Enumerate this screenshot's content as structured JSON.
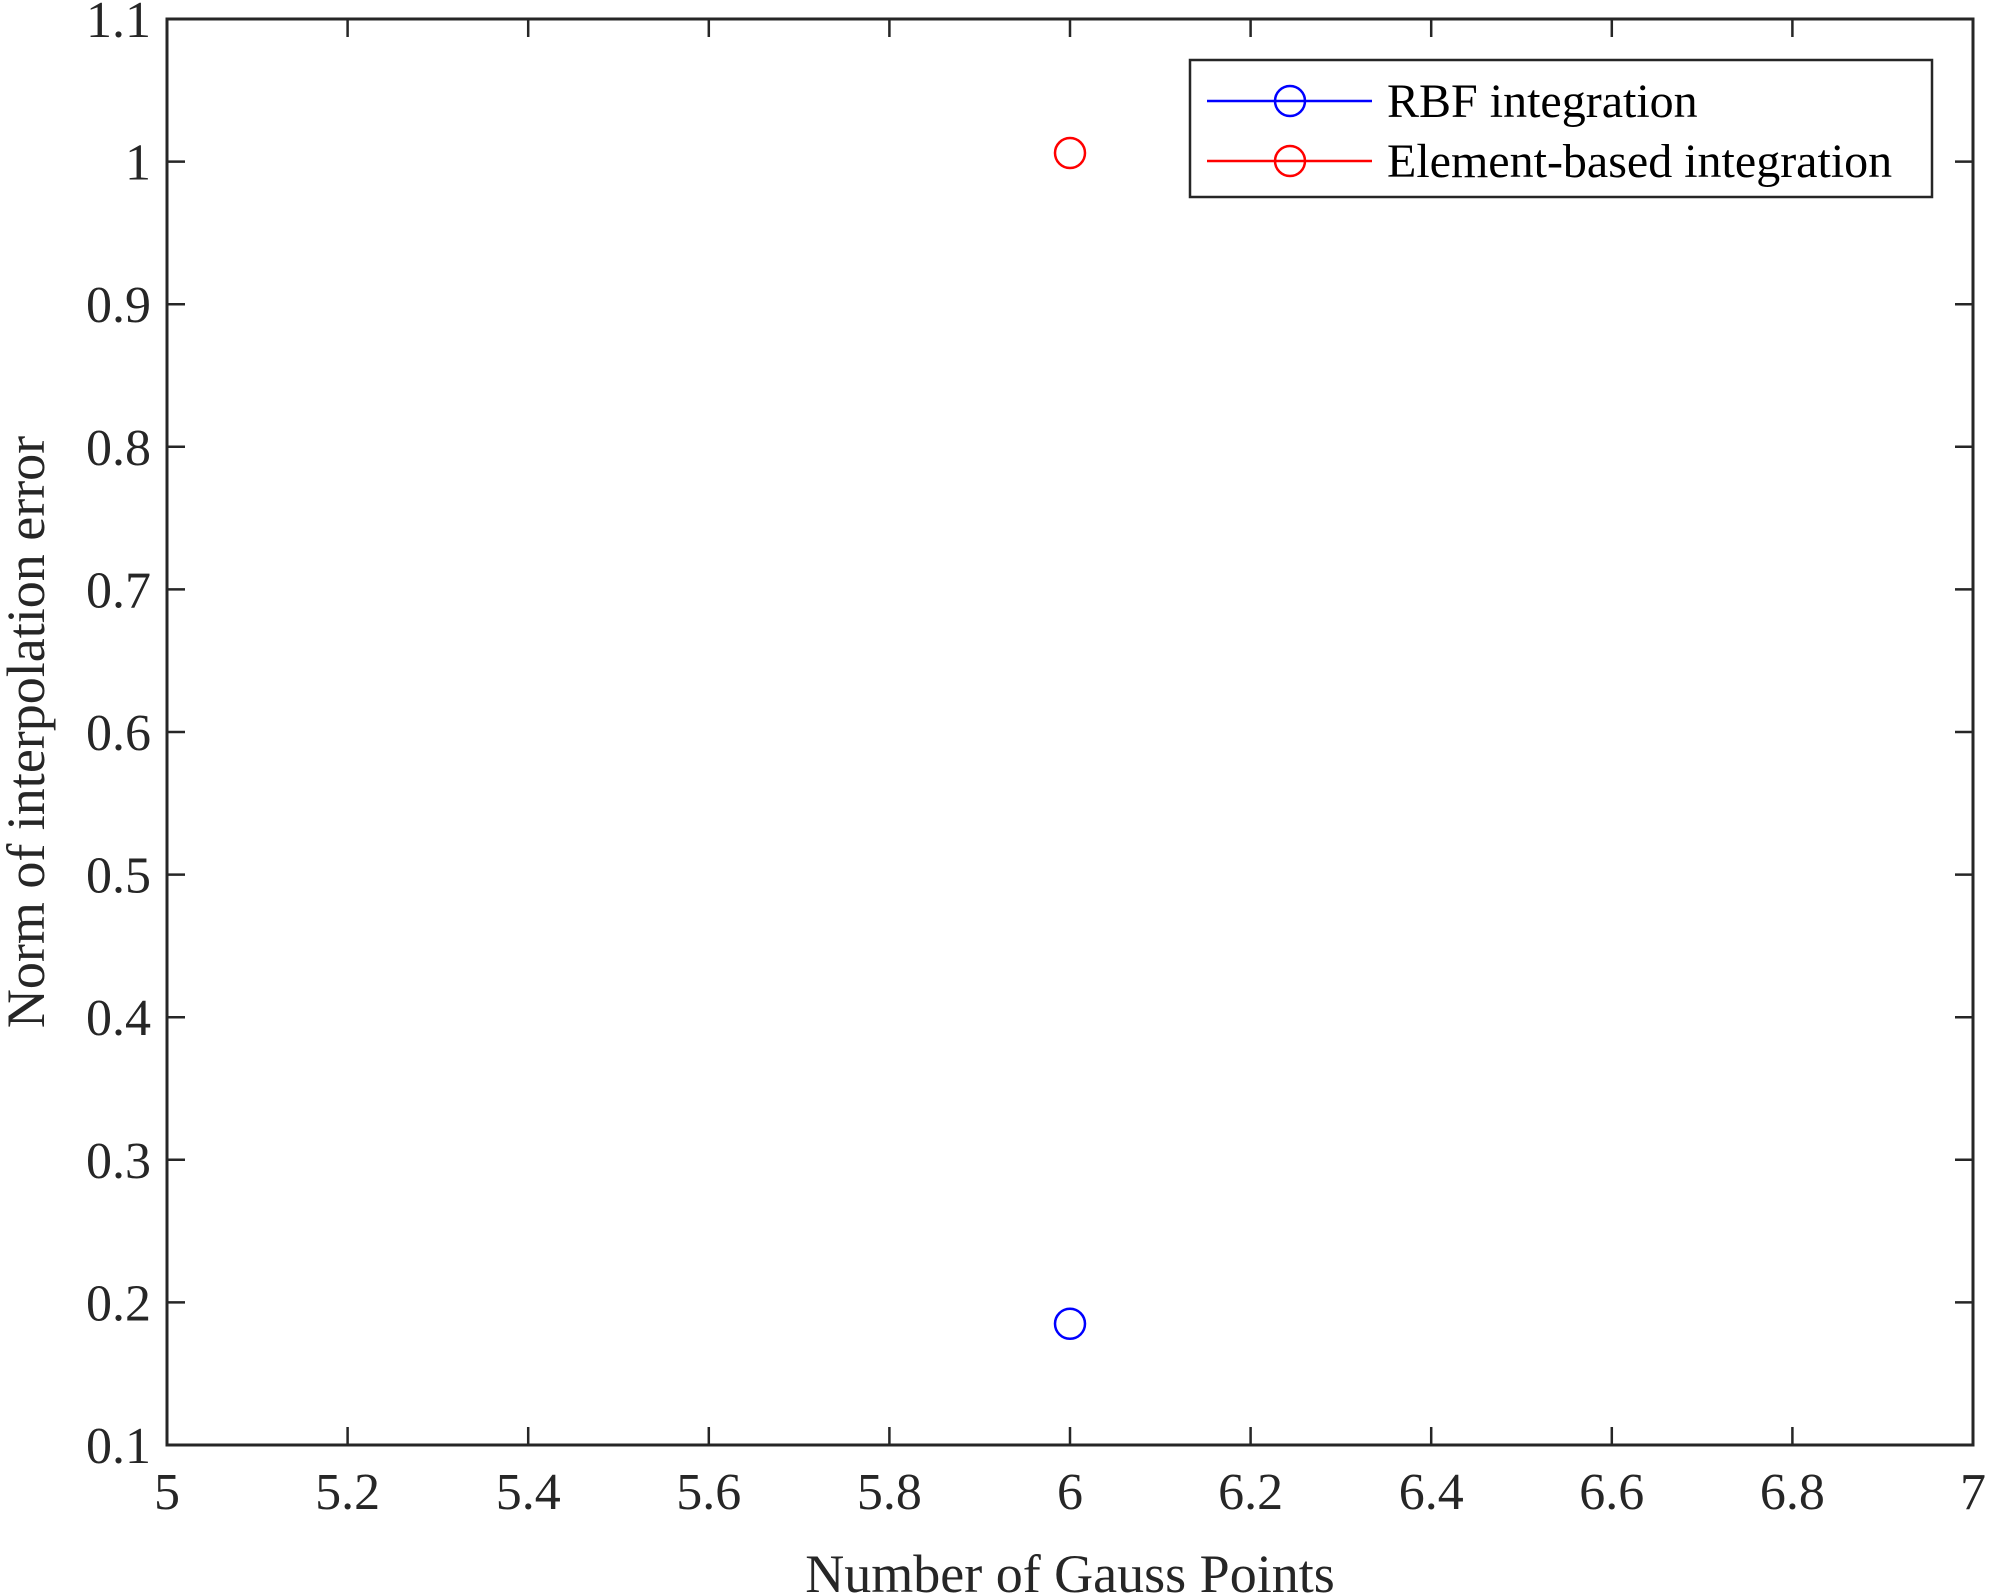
{
  "chart_data": {
    "type": "scatter",
    "xlabel": "Number of Gauss Points",
    "ylabel": "Norm of interpolation error",
    "xlim": [
      5,
      7
    ],
    "ylim": [
      0.1,
      1.1
    ],
    "xticks": [
      "5",
      "5.2",
      "5.4",
      "5.6",
      "5.8",
      "6",
      "6.2",
      "6.4",
      "6.6",
      "6.8",
      "7"
    ],
    "yticks": [
      "0.1",
      "0.2",
      "0.3",
      "0.4",
      "0.5",
      "0.6",
      "0.7",
      "0.8",
      "0.9",
      "1",
      "1.1"
    ],
    "grid": false,
    "legend_position": "top-right",
    "series": [
      {
        "name": "RBF integration",
        "color": "#0000ff",
        "marker": "circle",
        "x": [
          6
        ],
        "y": [
          0.185
        ]
      },
      {
        "name": "Element-based integration",
        "color": "#ff0000",
        "marker": "circle",
        "x": [
          6
        ],
        "y": [
          1.006
        ]
      }
    ]
  }
}
